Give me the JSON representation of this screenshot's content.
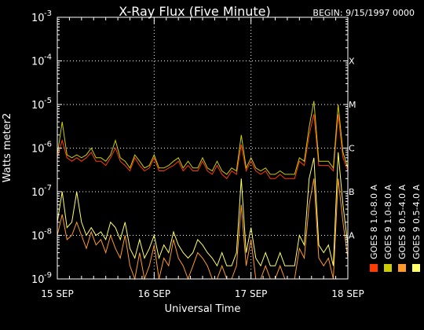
{
  "chart_data": {
    "type": "line",
    "title": "X-Ray Flux (Five Minute)",
    "begin": "BEGIN: 9/15/1997 0000",
    "xlabel": "Universal Time",
    "ylabel": "Watts meter2",
    "x_tick_labels": [
      "15 SEP",
      "16 SEP",
      "17 SEP",
      "18 SEP"
    ],
    "xlim_days": [
      0,
      3
    ],
    "y_scale": "log",
    "ylim": [
      1e-09,
      0.001
    ],
    "y_tick_labels": [
      {
        "base": "10",
        "exp": "-9"
      },
      {
        "base": "10",
        "exp": "-8"
      },
      {
        "base": "10",
        "exp": "-7"
      },
      {
        "base": "10",
        "exp": "-6"
      },
      {
        "base": "10",
        "exp": "-5"
      },
      {
        "base": "10",
        "exp": "-4"
      },
      {
        "base": "10",
        "exp": "-3"
      }
    ],
    "flare_classes": [
      {
        "label": "A",
        "value": 1e-08
      },
      {
        "label": "B",
        "value": 1e-07
      },
      {
        "label": "C",
        "value": 1e-06
      },
      {
        "label": "M",
        "value": 1e-05
      },
      {
        "label": "X",
        "value": 0.0001
      }
    ],
    "grid": "dotted at flare class levels and day boundaries",
    "series": [
      {
        "name": "GOES 8 1.0-8.0 A",
        "color": "#ff3c00",
        "x": [
          0,
          0.05,
          0.1,
          0.15,
          0.2,
          0.25,
          0.3,
          0.35,
          0.4,
          0.45,
          0.5,
          0.55,
          0.6,
          0.65,
          0.7,
          0.75,
          0.8,
          0.85,
          0.9,
          0.95,
          1.0,
          1.05,
          1.1,
          1.15,
          1.2,
          1.25,
          1.3,
          1.35,
          1.4,
          1.45,
          1.5,
          1.55,
          1.6,
          1.65,
          1.7,
          1.75,
          1.8,
          1.85,
          1.9,
          1.95,
          2.0,
          2.05,
          2.1,
          2.15,
          2.2,
          2.25,
          2.3,
          2.35,
          2.4,
          2.45,
          2.5,
          2.55,
          2.6,
          2.65,
          2.7,
          2.75,
          2.8,
          2.85,
          2.9,
          2.95,
          3.0
        ],
        "values": [
          6e-07,
          1.5e-06,
          6e-07,
          5e-07,
          6e-07,
          5e-07,
          6e-07,
          8e-07,
          5e-07,
          5e-07,
          4e-07,
          6e-07,
          1e-06,
          5e-07,
          4e-07,
          3e-07,
          6e-07,
          4e-07,
          3e-07,
          3.5e-07,
          6e-07,
          3e-07,
          3e-07,
          3.5e-07,
          4e-07,
          5e-07,
          3e-07,
          4e-07,
          3e-07,
          3e-07,
          5e-07,
          3e-07,
          2.5e-07,
          4e-07,
          2.5e-07,
          2e-07,
          3e-07,
          2.5e-07,
          1.2e-06,
          3e-07,
          5e-07,
          3e-07,
          2.5e-07,
          3e-07,
          2e-07,
          2e-07,
          2.5e-07,
          2e-07,
          2e-07,
          2e-07,
          5e-07,
          4e-07,
          2e-06,
          6e-06,
          4e-07,
          4e-07,
          4e-07,
          3e-07,
          6e-06,
          6e-07,
          3e-07
        ]
      },
      {
        "name": "GOES 8 0.5-4.0 A",
        "color": "#ff9a28",
        "x": [
          0,
          0.05,
          0.1,
          0.15,
          0.2,
          0.25,
          0.3,
          0.35,
          0.4,
          0.45,
          0.5,
          0.55,
          0.6,
          0.65,
          0.7,
          0.75,
          0.8,
          0.85,
          0.9,
          0.95,
          1.0,
          1.05,
          1.1,
          1.15,
          1.2,
          1.25,
          1.3,
          1.35,
          1.4,
          1.45,
          1.5,
          1.55,
          1.6,
          1.65,
          1.7,
          1.75,
          1.8,
          1.85,
          1.9,
          1.95,
          2.0,
          2.05,
          2.1,
          2.15,
          2.2,
          2.25,
          2.3,
          2.35,
          2.4,
          2.45,
          2.5,
          2.55,
          2.6,
          2.65,
          2.7,
          2.75,
          2.8,
          2.85,
          2.9,
          2.95,
          3.0
        ],
        "values": [
          1e-08,
          3e-08,
          8e-09,
          1e-08,
          2e-08,
          1e-08,
          5e-09,
          1.2e-08,
          6e-09,
          8e-09,
          4e-09,
          1e-08,
          5e-09,
          3e-09,
          1e-08,
          2e-09,
          1e-09,
          4e-09,
          1e-09,
          2e-09,
          6e-09,
          1e-09,
          3e-09,
          2e-09,
          8e-09,
          3e-09,
          2e-09,
          1e-09,
          2e-09,
          4e-09,
          3e-09,
          2e-09,
          1e-09,
          1e-09,
          2e-09,
          1e-09,
          1e-09,
          2e-09,
          5e-08,
          2e-09,
          8e-09,
          1e-09,
          1e-09,
          2e-09,
          1e-09,
          1e-09,
          2e-09,
          1e-09,
          1e-09,
          1e-09,
          5e-09,
          3e-09,
          5e-08,
          2e-07,
          3e-09,
          2e-09,
          3e-09,
          1e-09,
          2e-07,
          2e-08,
          3e-09
        ]
      },
      {
        "name": "GOES 9 1.0-8.0 A",
        "color": "#cccc00",
        "x": [
          0,
          0.05,
          0.1,
          0.15,
          0.2,
          0.25,
          0.3,
          0.35,
          0.4,
          0.45,
          0.5,
          0.55,
          0.6,
          0.65,
          0.7,
          0.75,
          0.8,
          0.85,
          0.9,
          0.95,
          1.0,
          1.05,
          1.1,
          1.15,
          1.2,
          1.25,
          1.3,
          1.35,
          1.4,
          1.45,
          1.5,
          1.55,
          1.6,
          1.65,
          1.7,
          1.75,
          1.8,
          1.85,
          1.9,
          1.95,
          2.0,
          2.05,
          2.1,
          2.15,
          2.2,
          2.25,
          2.3,
          2.35,
          2.4,
          2.45,
          2.5,
          2.55,
          2.6,
          2.65,
          2.7,
          2.75,
          2.8,
          2.85,
          2.9,
          2.95,
          3.0
        ],
        "values": [
          7e-07,
          4e-06,
          7e-07,
          6e-07,
          7e-07,
          6e-07,
          7e-07,
          1e-06,
          6e-07,
          6e-07,
          5e-07,
          7e-07,
          1.5e-06,
          6e-07,
          5e-07,
          3.5e-07,
          7e-07,
          5e-07,
          3.5e-07,
          4e-07,
          7e-07,
          3.5e-07,
          3.5e-07,
          4e-07,
          5e-07,
          6e-07,
          3.5e-07,
          5e-07,
          3.5e-07,
          3.5e-07,
          6e-07,
          3.5e-07,
          3e-07,
          5e-07,
          3e-07,
          2.5e-07,
          3.5e-07,
          3e-07,
          2e-06,
          3.5e-07,
          6e-07,
          3.5e-07,
          3e-07,
          3.5e-07,
          2.5e-07,
          2.5e-07,
          3e-07,
          2.5e-07,
          2.5e-07,
          2.5e-07,
          6e-07,
          5e-07,
          3e-06,
          1.2e-05,
          5e-07,
          5e-07,
          5e-07,
          3.5e-07,
          1e-05,
          8e-07,
          3.5e-07
        ]
      },
      {
        "name": "GOES 9 0.5-4.0 A",
        "color": "#ffff66",
        "x": [
          0,
          0.05,
          0.1,
          0.15,
          0.2,
          0.25,
          0.3,
          0.35,
          0.4,
          0.45,
          0.5,
          0.55,
          0.6,
          0.65,
          0.7,
          0.75,
          0.8,
          0.85,
          0.9,
          0.95,
          1.0,
          1.05,
          1.1,
          1.15,
          1.2,
          1.25,
          1.3,
          1.35,
          1.4,
          1.45,
          1.5,
          1.55,
          1.6,
          1.65,
          1.7,
          1.75,
          1.8,
          1.85,
          1.9,
          1.95,
          2.0,
          2.05,
          2.1,
          2.15,
          2.2,
          2.25,
          2.3,
          2.35,
          2.4,
          2.45,
          2.5,
          2.55,
          2.6,
          2.65,
          2.7,
          2.75,
          2.8,
          2.85,
          2.9,
          2.95,
          3.0
        ],
        "values": [
          2e-08,
          1e-07,
          1.5e-08,
          2e-08,
          1e-07,
          2e-08,
          1e-08,
          1.5e-08,
          1e-08,
          1.2e-08,
          8e-09,
          2e-08,
          1.5e-08,
          8e-09,
          2e-08,
          5e-09,
          3e-09,
          8e-09,
          3e-09,
          5e-09,
          1e-08,
          3e-09,
          6e-09,
          4e-09,
          1.2e-08,
          6e-09,
          4e-09,
          3e-09,
          4e-09,
          8e-09,
          6e-09,
          4e-09,
          3e-09,
          2e-09,
          4e-09,
          2e-09,
          2e-09,
          4e-09,
          2e-07,
          4e-09,
          1.5e-08,
          3e-09,
          2e-09,
          4e-09,
          2e-09,
          2e-09,
          4e-09,
          2e-09,
          2e-09,
          2e-09,
          1e-08,
          6e-09,
          2e-07,
          6e-07,
          6e-09,
          4e-09,
          6e-09,
          2e-09,
          8e-07,
          5e-08,
          6e-09
        ]
      }
    ]
  }
}
